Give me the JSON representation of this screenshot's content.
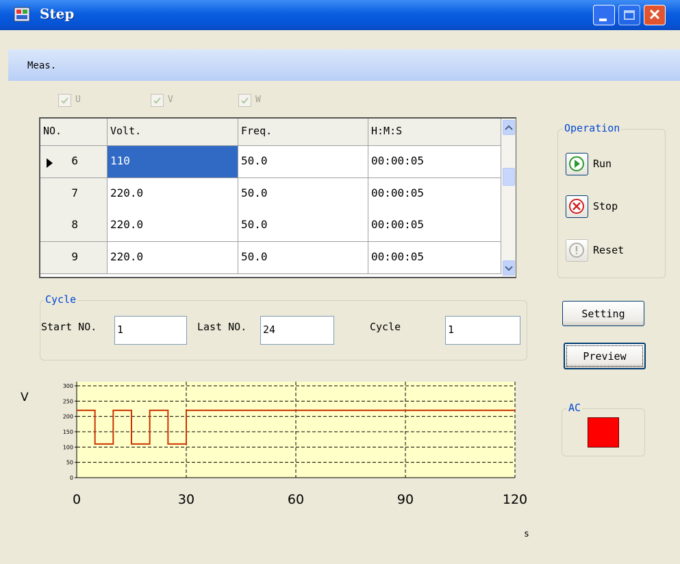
{
  "window": {
    "title": "Step"
  },
  "menu": [
    "Meas."
  ],
  "checkboxes": [
    "U",
    "V",
    "W"
  ],
  "table": {
    "columns": [
      "NO.",
      "Volt.",
      "Freq.",
      "H:M:S"
    ],
    "rows": [
      [
        "6",
        "110",
        "50.0",
        "00:00:05"
      ],
      [
        "7",
        "220.0",
        "50.0",
        "00:00:05"
      ],
      [
        "8",
        "220.0",
        "50.0",
        "00:00:05"
      ],
      [
        "9",
        "220.0",
        "50.0",
        "00:00:05"
      ]
    ]
  },
  "operation": {
    "title": "Operation",
    "buttons": [
      "Run",
      "Stop",
      "Reset"
    ]
  },
  "cycle": {
    "title": "Cycle",
    "start_label": "Start NO.",
    "start_value": "1",
    "last_label": "Last NO.",
    "last_value": "24",
    "cycle_label": "Cycle",
    "cycle_value": "1"
  },
  "buttons": [
    "Setting",
    "Preview"
  ],
  "ac": {
    "title": "AC"
  },
  "chart_data": {
    "type": "line",
    "y_label": "V",
    "x_label": "s",
    "x": [
      0,
      5,
      5,
      10,
      10,
      15,
      15,
      20,
      20,
      25,
      25,
      30,
      30,
      120
    ],
    "series": [
      {
        "name": "Volt.",
        "color": "#cc3300",
        "values": [
          220,
          220,
          110,
          110,
          220,
          220,
          110,
          110,
          220,
          220,
          110,
          110,
          220,
          220
        ]
      }
    ],
    "xlim": [
      0,
      120
    ],
    "xticks": [
      0,
      30,
      60,
      90,
      120
    ],
    "ylim": [
      0,
      300
    ],
    "yticks": [
      0,
      50,
      100,
      150,
      200,
      250,
      300
    ],
    "grid": true
  }
}
